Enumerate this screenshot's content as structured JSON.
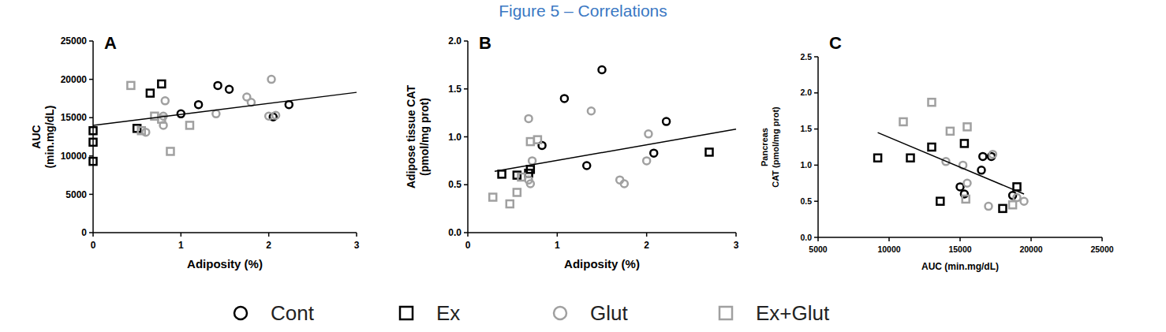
{
  "title": "Figure 5 – Correlations",
  "chart_data": [
    {
      "type": "scatter",
      "title": "A",
      "x_label": "Adiposity (%)",
      "y_label": [
        "AUC",
        "(min.mg/dL)"
      ],
      "xlim": [
        0,
        3
      ],
      "ylim": [
        0,
        25000
      ],
      "xticks": [
        0,
        1,
        2,
        3
      ],
      "yticks": [
        0,
        5000,
        10000,
        15000,
        20000,
        25000
      ],
      "legend": "bottom",
      "series": [
        {
          "name": "Cont",
          "color": "#000000",
          "marker": "circle",
          "x": [
            1.0,
            1.2,
            1.42,
            1.55,
            2.05,
            2.23
          ],
          "values": [
            15500,
            16700,
            19200,
            18700,
            15100,
            16700
          ]
        },
        {
          "name": "Ex",
          "color": "#000000",
          "marker": "square",
          "x": [
            0,
            0,
            0,
            0.5,
            0.65,
            0.78
          ],
          "values": [
            13300,
            11800,
            9300,
            13600,
            18200,
            19400
          ]
        },
        {
          "name": "Glut",
          "color": "#a0a0a0",
          "marker": "circle",
          "x": [
            0.6,
            0.8,
            0.8,
            0.82,
            1.4,
            1.75,
            1.8,
            2.0,
            2.03,
            2.08
          ],
          "values": [
            13100,
            15200,
            14000,
            17200,
            15500,
            17700,
            17000,
            15200,
            20000,
            15300
          ]
        },
        {
          "name": "Ex+Glut",
          "color": "#a0a0a0",
          "marker": "square",
          "x": [
            0.43,
            0.55,
            0.7,
            0.78,
            0.88,
            1.1
          ],
          "values": [
            19200,
            13300,
            15200,
            14800,
            10600,
            14000
          ]
        }
      ],
      "trendline": {
        "x": [
          0,
          3
        ],
        "values": [
          14000,
          18300
        ]
      }
    },
    {
      "type": "scatter",
      "title": "B",
      "x_label": "Adiposity (%)",
      "y_label": [
        "Adipose tissue CAT",
        "(pmol/mg prot)"
      ],
      "xlim": [
        0,
        3
      ],
      "ylim": [
        0,
        2
      ],
      "xticks": [
        0,
        1,
        2,
        3
      ],
      "yticks": [
        {
          "value": 0,
          "label": "0.0"
        },
        {
          "value": 0.5,
          "label": "0.5"
        },
        {
          "value": 1,
          "label": "1.0"
        },
        {
          "value": 1.5,
          "label": "1.5"
        },
        {
          "value": 2,
          "label": "2.0"
        }
      ],
      "series": [
        {
          "name": "Cont",
          "color": "#000000",
          "marker": "circle",
          "x": [
            0.83,
            1.08,
            1.33,
            1.5,
            2.08,
            2.22
          ],
          "values": [
            0.91,
            1.4,
            0.7,
            1.7,
            0.83,
            1.16
          ]
        },
        {
          "name": "Ex",
          "color": "#000000",
          "marker": "square",
          "x": [
            0.38,
            0.55,
            0.68,
            0.7,
            2.7
          ],
          "values": [
            0.61,
            0.6,
            0.62,
            0.66,
            0.84
          ]
        },
        {
          "name": "Glut",
          "color": "#a0a0a0",
          "marker": "circle",
          "x": [
            0.68,
            0.68,
            0.7,
            0.72,
            1.38,
            1.7,
            1.75,
            2.0,
            2.02
          ],
          "values": [
            1.19,
            0.55,
            0.51,
            0.75,
            1.27,
            0.55,
            0.51,
            0.75,
            1.03
          ]
        },
        {
          "name": "Ex+Glut",
          "color": "#a0a0a0",
          "marker": "square",
          "x": [
            0.28,
            0.47,
            0.55,
            0.6,
            0.7,
            0.78
          ],
          "values": [
            0.37,
            0.3,
            0.42,
            0.58,
            0.95,
            0.97
          ]
        }
      ],
      "trendline": {
        "x": [
          0.3,
          3
        ],
        "values": [
          0.64,
          1.08
        ]
      }
    },
    {
      "type": "scatter",
      "title": "C",
      "x_label": "AUC (min.mg/dL)",
      "y_label": [
        "Pancreas",
        "CAT (pmol/mg prot)"
      ],
      "xlim": [
        5000,
        25000
      ],
      "ylim": [
        0,
        2.5
      ],
      "xticks": [
        5000,
        10000,
        15000,
        20000,
        25000
      ],
      "yticks": [
        {
          "value": 0,
          "label": "0.0"
        },
        {
          "value": 0.5,
          "label": "0.5"
        },
        {
          "value": 1,
          "label": "1.0"
        },
        {
          "value": 1.5,
          "label": "1.5"
        },
        {
          "value": 2,
          "label": "2.0"
        },
        {
          "value": 2.5,
          "label": "2.5"
        }
      ],
      "series": [
        {
          "name": "Cont",
          "color": "#000000",
          "marker": "circle",
          "x": [
            15000,
            15300,
            16500,
            16600,
            17200,
            18700
          ],
          "values": [
            0.7,
            0.6,
            0.93,
            1.12,
            1.12,
            0.58
          ]
        },
        {
          "name": "Ex",
          "color": "#000000",
          "marker": "square",
          "x": [
            9200,
            11500,
            13000,
            13600,
            15300,
            18000,
            19000
          ],
          "values": [
            1.1,
            1.1,
            1.25,
            0.5,
            1.3,
            0.4,
            0.7
          ]
        },
        {
          "name": "Glut",
          "color": "#a0a0a0",
          "marker": "circle",
          "x": [
            14000,
            15200,
            15500,
            17000,
            17300,
            19000,
            19500
          ],
          "values": [
            1.05,
            1.0,
            0.75,
            0.43,
            1.15,
            0.55,
            0.5
          ]
        },
        {
          "name": "Ex+Glut",
          "color": "#a0a0a0",
          "marker": "square",
          "x": [
            11000,
            13000,
            14300,
            15400,
            15500,
            18700
          ],
          "values": [
            1.6,
            1.87,
            1.47,
            0.53,
            1.53,
            0.45
          ]
        }
      ],
      "trendline": {
        "x": [
          9200,
          19500
        ],
        "values": [
          1.45,
          0.6
        ]
      }
    }
  ]
}
